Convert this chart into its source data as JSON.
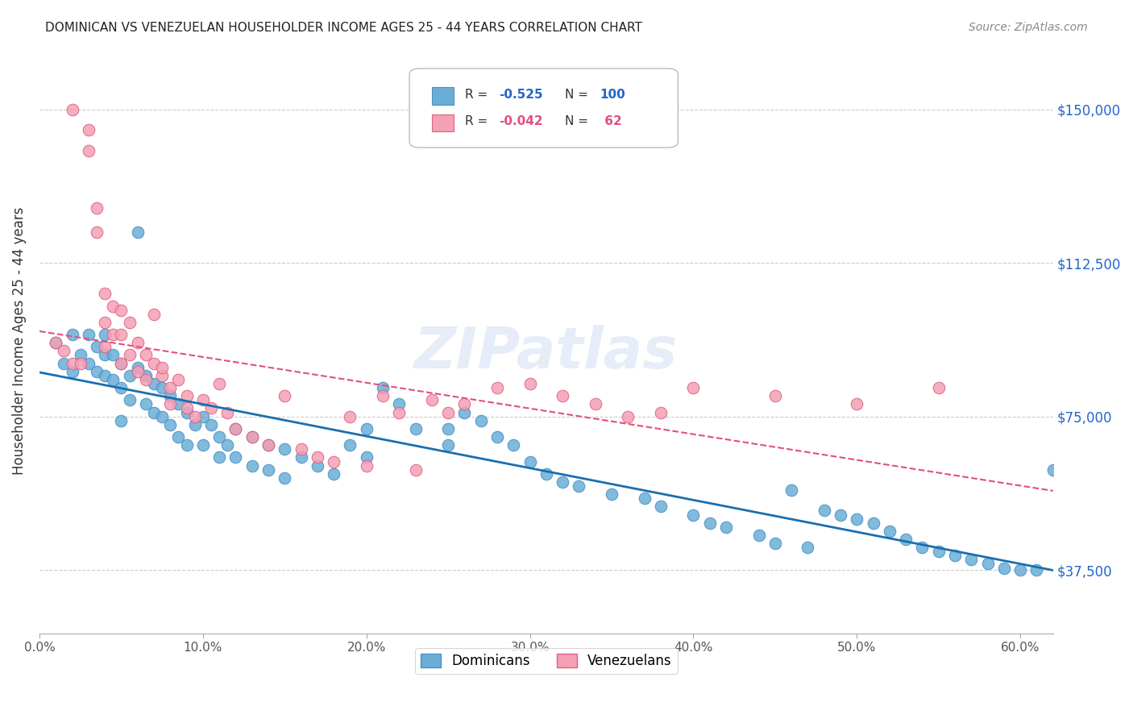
{
  "title": "DOMINICAN VS VENEZUELAN HOUSEHOLDER INCOME AGES 25 - 44 YEARS CORRELATION CHART",
  "source": "Source: ZipAtlas.com",
  "ylabel": "Householder Income Ages 25 - 44 years",
  "xlabel_ticks": [
    "0.0%",
    "10.0%",
    "20.0%",
    "30.0%",
    "40.0%",
    "50.0%",
    "60.0%"
  ],
  "xlabel_vals": [
    0,
    10,
    20,
    30,
    40,
    50,
    60
  ],
  "ylim": [
    22000,
    165000
  ],
  "xlim": [
    0,
    62
  ],
  "ytick_vals": [
    37500,
    75000,
    112500,
    150000
  ],
  "ytick_labels": [
    "$37,500",
    "$75,000",
    "$112,500",
    "$150,000"
  ],
  "dominican_color": "#6aaed6",
  "dominican_edge": "#4a90c4",
  "venezuelan_color": "#f4a0b5",
  "venezuelan_edge": "#e06080",
  "trendline_dominican": "#1a6faf",
  "trendline_venezuelan": "#e05080",
  "watermark": "ZIPatlas",
  "dominican_x": [
    1,
    1.5,
    2,
    2,
    2.5,
    3,
    3,
    3.5,
    3.5,
    4,
    4,
    4,
    4.5,
    4.5,
    5,
    5,
    5,
    5.5,
    5.5,
    6,
    6,
    6.5,
    6.5,
    7,
    7,
    7.5,
    7.5,
    8,
    8,
    8.5,
    8.5,
    9,
    9,
    9.5,
    10,
    10,
    10.5,
    11,
    11,
    11.5,
    12,
    12,
    13,
    13,
    14,
    14,
    15,
    15,
    16,
    17,
    18,
    19,
    20,
    20,
    21,
    22,
    23,
    25,
    25,
    26,
    27,
    28,
    29,
    30,
    31,
    32,
    33,
    35,
    37,
    38,
    40,
    41,
    42,
    44,
    45,
    46,
    47,
    48,
    49,
    50,
    51,
    52,
    53,
    54,
    55,
    56,
    57,
    58,
    59,
    60,
    61,
    62
  ],
  "dominican_y": [
    93000,
    88000,
    95000,
    86000,
    90000,
    95000,
    88000,
    92000,
    86000,
    95000,
    90000,
    85000,
    90000,
    84000,
    88000,
    82000,
    74000,
    85000,
    79000,
    87000,
    120000,
    85000,
    78000,
    83000,
    76000,
    82000,
    75000,
    80000,
    73000,
    78000,
    70000,
    76000,
    68000,
    73000,
    75000,
    68000,
    73000,
    70000,
    65000,
    68000,
    72000,
    65000,
    70000,
    63000,
    68000,
    62000,
    67000,
    60000,
    65000,
    63000,
    61000,
    68000,
    72000,
    65000,
    82000,
    78000,
    72000,
    72000,
    68000,
    76000,
    74000,
    70000,
    68000,
    64000,
    61000,
    59000,
    58000,
    56000,
    55000,
    53000,
    51000,
    49000,
    48000,
    46000,
    44000,
    57000,
    43000,
    52000,
    51000,
    50000,
    49000,
    47000,
    45000,
    43000,
    42000,
    41000,
    40000,
    39000,
    38000,
    37500,
    37500,
    62000
  ],
  "venezuelan_x": [
    1,
    1.5,
    2,
    2,
    2.5,
    3,
    3,
    3.5,
    3.5,
    4,
    4,
    4,
    4.5,
    4.5,
    5,
    5,
    5,
    5.5,
    5.5,
    6,
    6,
    6.5,
    6.5,
    7,
    7,
    7.5,
    7.5,
    8,
    8,
    8.5,
    9,
    9,
    9.5,
    10,
    10.5,
    11,
    11.5,
    12,
    13,
    14,
    15,
    16,
    17,
    18,
    19,
    20,
    21,
    22,
    23,
    24,
    25,
    26,
    28,
    30,
    32,
    34,
    36,
    38,
    40,
    45,
    50,
    55
  ],
  "venezuelan_y": [
    93000,
    91000,
    150000,
    88000,
    88000,
    145000,
    140000,
    126000,
    120000,
    105000,
    98000,
    92000,
    102000,
    95000,
    101000,
    95000,
    88000,
    98000,
    90000,
    93000,
    86000,
    90000,
    84000,
    88000,
    100000,
    85000,
    87000,
    82000,
    78000,
    84000,
    80000,
    77000,
    75000,
    79000,
    77000,
    83000,
    76000,
    72000,
    70000,
    68000,
    80000,
    67000,
    65000,
    64000,
    75000,
    63000,
    80000,
    76000,
    62000,
    79000,
    76000,
    78000,
    82000,
    83000,
    80000,
    78000,
    75000,
    76000,
    82000,
    80000,
    78000,
    82000
  ]
}
